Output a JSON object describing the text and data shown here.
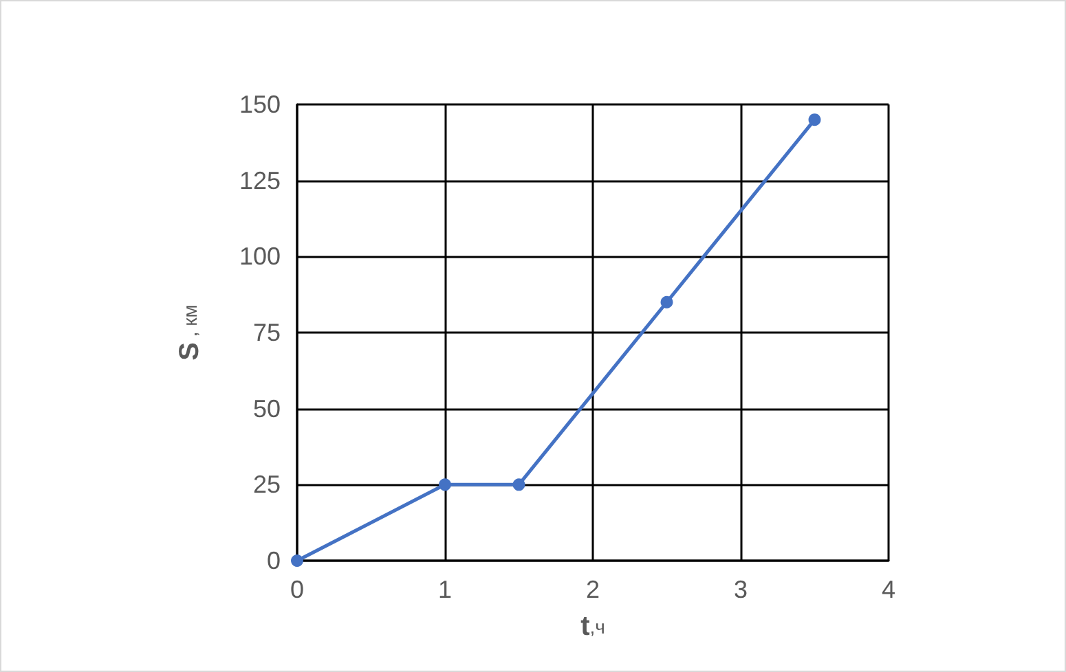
{
  "chart_data": {
    "type": "line",
    "xlabel": "t,ч",
    "ylabel": "S , км",
    "x": [
      0,
      1,
      1.5,
      2.5,
      3.5
    ],
    "series": [
      {
        "color": "#4472c4",
        "values": [
          0,
          25,
          25,
          85,
          145
        ]
      }
    ],
    "xlim": [
      0,
      4
    ],
    "xticks": [
      0,
      1,
      2,
      3,
      4
    ],
    "ylim": [
      0,
      150
    ],
    "yticks": [
      0,
      25,
      50,
      75,
      100,
      125,
      150
    ],
    "grid": true,
    "marker": "circle",
    "line_style": "solid"
  }
}
